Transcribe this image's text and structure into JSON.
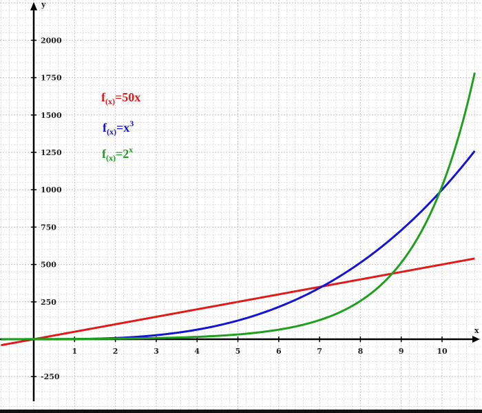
{
  "chart_data": {
    "type": "line",
    "xlabel": "x",
    "ylabel": "y",
    "xlim": [
      -0.8,
      10.8
    ],
    "ylim": [
      -400,
      2250
    ],
    "x_ticks": [
      1,
      2,
      3,
      4,
      5,
      6,
      7,
      8,
      9,
      10
    ],
    "y_ticks": [
      -250,
      250,
      500,
      750,
      1000,
      1250,
      1500,
      1750,
      2000
    ],
    "grid": true,
    "series": [
      {
        "name": "f(x)=50x",
        "legend": {
          "f": "f",
          "sub": "(x)",
          "rest": "=50x",
          "sup": ""
        },
        "color": "#e01b1b",
        "formula": "50*x",
        "points": [
          [
            -0.8,
            -40
          ],
          [
            0,
            0
          ],
          [
            2,
            100
          ],
          [
            4,
            200
          ],
          [
            6,
            300
          ],
          [
            7,
            350
          ],
          [
            8,
            400
          ],
          [
            10,
            500
          ],
          [
            10.8,
            540
          ]
        ]
      },
      {
        "name": "f(x)=x^3",
        "legend": {
          "f": "f",
          "sub": "(x)",
          "rest": "=x",
          "sup": "3"
        },
        "color": "#1414d4",
        "formula": "x^3",
        "points": [
          [
            -0.8,
            -0.5
          ],
          [
            0,
            0
          ],
          [
            2,
            8
          ],
          [
            4,
            64
          ],
          [
            6,
            216
          ],
          [
            7,
            343
          ],
          [
            8,
            512
          ],
          [
            9,
            729
          ],
          [
            10,
            1000
          ],
          [
            10.8,
            1260
          ]
        ]
      },
      {
        "name": "f(x)=2^x",
        "legend": {
          "f": "f",
          "sub": "(x)",
          "rest": "=2",
          "sup": "x"
        },
        "color": "#1ea01e",
        "formula": "2^x",
        "points": [
          [
            -0.8,
            0.57
          ],
          [
            0,
            1
          ],
          [
            2,
            4
          ],
          [
            4,
            16
          ],
          [
            6,
            64
          ],
          [
            7,
            128
          ],
          [
            8,
            256
          ],
          [
            9,
            512
          ],
          [
            10,
            1024
          ],
          [
            10.8,
            1783
          ]
        ]
      }
    ]
  }
}
